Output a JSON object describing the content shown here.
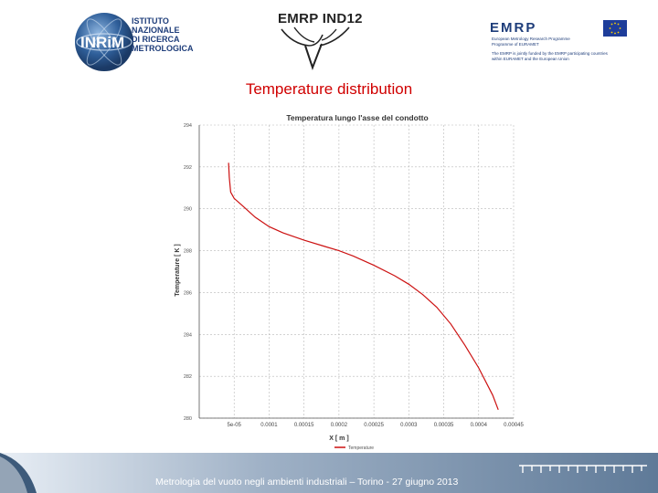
{
  "header": {
    "inrim_logo": {
      "mark": "INRiM",
      "lines": [
        "ISTITUTO",
        "NAZIONALE",
        "DI RICERCA",
        "METROLOGICA"
      ]
    },
    "emrp_ind_logo": {
      "text": "EMRP IND12"
    },
    "emrp_logo": {
      "word": "EMRP",
      "line1": "European Metrology Research Programme",
      "line2": "Programme of EURAMET",
      "note1": "The EMRP is jointly funded by the EMRP participating countries",
      "note2": "within EURAMET and the European Union"
    }
  },
  "slide_title": "Temperature distribution",
  "chart_data": {
    "type": "line",
    "title": "Temperatura lungo l'asse del condotto",
    "xlabel": "X [ m ]",
    "ylabel": "Temperature [ K ]",
    "xlim": [
      0,
      0.00045
    ],
    "ylim": [
      280,
      294
    ],
    "x_tick_labels": [
      "5e-05",
      "0.0001",
      "0.00015",
      "0.0002",
      "0.00025",
      "0.0003",
      "0.00035",
      "0.0004",
      "0.00045"
    ],
    "x_ticks": [
      5e-05,
      0.0001,
      0.00015,
      0.0002,
      0.00025,
      0.0003,
      0.00035,
      0.0004,
      0.00045
    ],
    "y_ticks": [
      280,
      282,
      284,
      286,
      288,
      290,
      292,
      294
    ],
    "grid": true,
    "legend_position": "bottom-center",
    "series": [
      {
        "name": "Temperature",
        "color": "#cc1111",
        "x": [
          4.2e-05,
          4.3e-05,
          4.5e-05,
          5e-05,
          6e-05,
          8e-05,
          0.0001,
          0.00012,
          0.00015,
          0.00018,
          0.0002,
          0.00022,
          0.00025,
          0.00028,
          0.0003,
          0.00032,
          0.00034,
          0.00036,
          0.00038,
          0.0004,
          0.00042,
          0.000428
        ],
        "y": [
          292.2,
          291.5,
          290.8,
          290.5,
          290.2,
          289.6,
          289.15,
          288.85,
          288.5,
          288.2,
          288.0,
          287.75,
          287.3,
          286.8,
          286.4,
          285.9,
          285.3,
          284.5,
          283.5,
          282.4,
          281.1,
          280.4
        ]
      }
    ]
  },
  "footer": {
    "text": "Metrologia del vuoto negli ambienti industriali – Torino - 27 giugno 2013"
  },
  "colors": {
    "title_red": "#d00000",
    "brand_blue": "#1e3d7a"
  }
}
